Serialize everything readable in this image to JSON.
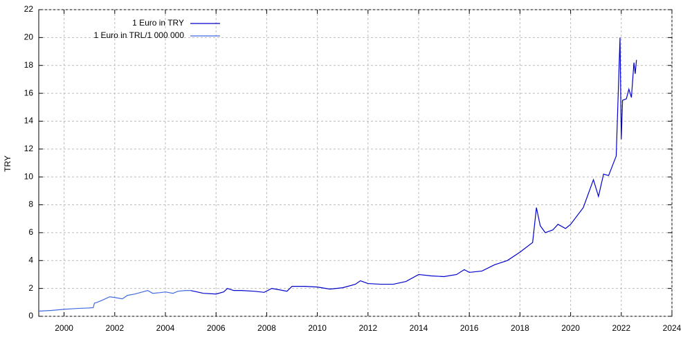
{
  "chart_data": {
    "type": "line",
    "ylabel": "TRY",
    "xlim": [
      1999,
      2024
    ],
    "ylim": [
      0,
      22
    ],
    "xticks": [
      2000,
      2002,
      2004,
      2006,
      2008,
      2010,
      2012,
      2014,
      2016,
      2018,
      2020,
      2022,
      2024
    ],
    "yticks": [
      0,
      2,
      4,
      6,
      8,
      10,
      12,
      14,
      16,
      18,
      20,
      22
    ],
    "grid": true,
    "legend": "top-left",
    "series": [
      {
        "name": "1 Euro in TRY",
        "color": "#0000cc",
        "x": [
          2005.0,
          2005.5,
          2006.0,
          2006.3,
          2006.45,
          2006.7,
          2007.0,
          2007.5,
          2007.9,
          2008.2,
          2008.5,
          2008.8,
          2009.0,
          2009.5,
          2010.0,
          2010.5,
          2011.0,
          2011.5,
          2011.7,
          2012.0,
          2012.5,
          2013.0,
          2013.5,
          2014.0,
          2014.5,
          2015.0,
          2015.5,
          2015.8,
          2016.0,
          2016.5,
          2017.0,
          2017.5,
          2018.0,
          2018.5,
          2018.65,
          2018.8,
          2019.0,
          2019.3,
          2019.5,
          2019.8,
          2020.0,
          2020.5,
          2020.8,
          2020.9,
          2021.1,
          2021.3,
          2021.5,
          2021.8,
          2021.95,
          2022.0,
          2022.05,
          2022.2,
          2022.3,
          2022.4,
          2022.5,
          2022.55,
          2022.6
        ],
        "values": [
          1.85,
          1.65,
          1.6,
          1.75,
          2.0,
          1.85,
          1.85,
          1.8,
          1.72,
          2.0,
          1.9,
          1.8,
          2.15,
          2.15,
          2.1,
          1.95,
          2.05,
          2.3,
          2.55,
          2.35,
          2.3,
          2.3,
          2.5,
          3.0,
          2.9,
          2.85,
          3.0,
          3.35,
          3.15,
          3.25,
          3.7,
          4.0,
          4.6,
          5.3,
          7.8,
          6.5,
          6.0,
          6.2,
          6.6,
          6.3,
          6.6,
          7.8,
          9.3,
          9.8,
          8.6,
          10.2,
          10.1,
          11.5,
          20.0,
          12.7,
          15.5,
          15.6,
          16.3,
          15.7,
          18.2,
          17.4,
          18.4
        ]
      },
      {
        "name": "1 Euro in TRL/1 000 000",
        "color": "#4169e1",
        "x": [
          1999.0,
          1999.5,
          2000.0,
          2000.5,
          2001.0,
          2001.15,
          2001.2,
          2001.3,
          2001.5,
          2001.8,
          2002.0,
          2002.3,
          2002.5,
          2002.8,
          2003.0,
          2003.3,
          2003.5,
          2003.8,
          2004.0,
          2004.3,
          2004.5,
          2004.8,
          2005.0
        ],
        "values": [
          0.37,
          0.42,
          0.5,
          0.56,
          0.6,
          0.62,
          0.95,
          1.0,
          1.15,
          1.4,
          1.35,
          1.25,
          1.5,
          1.6,
          1.7,
          1.85,
          1.65,
          1.7,
          1.75,
          1.65,
          1.8,
          1.85,
          1.85
        ]
      }
    ]
  }
}
